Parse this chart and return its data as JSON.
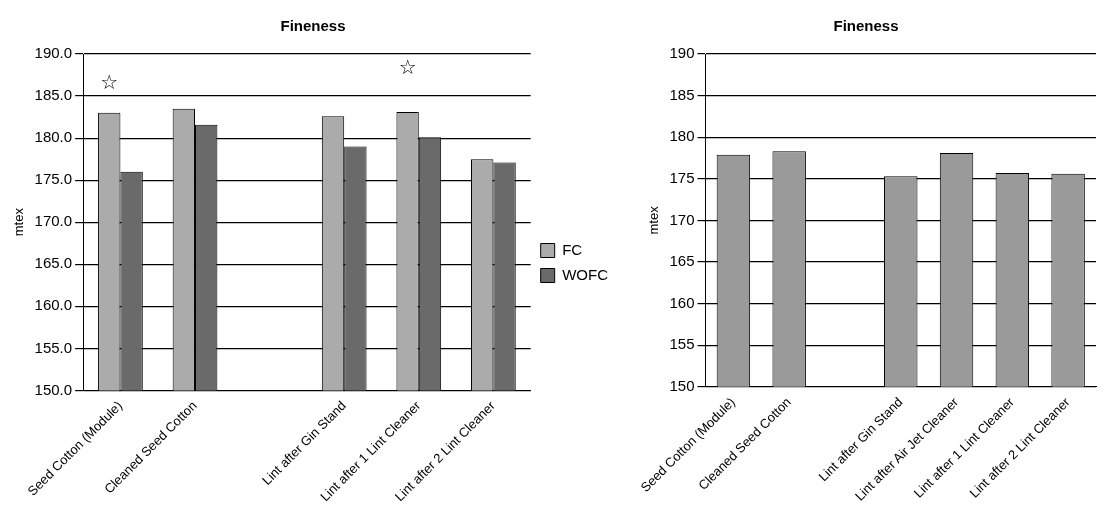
{
  "chart_data": [
    {
      "type": "bar",
      "title": "Fineness",
      "ylabel": "mtex",
      "categories": [
        "Seed Cotton (Module)",
        "Cleaned Seed Cotton",
        null,
        "Lint after Gin Stand",
        "Lint after 1 Lint Cleaner",
        "Lint after 2 Lint Cleaner"
      ],
      "series": [
        {
          "name": "FC",
          "color": "#ababab",
          "values": [
            183.0,
            183.5,
            null,
            182.6,
            183.1,
            177.5
          ]
        },
        {
          "name": "WOFC",
          "color": "#6a6a6a",
          "values": [
            176.0,
            181.6,
            null,
            179.0,
            180.1,
            177.1
          ]
        }
      ],
      "ylim": [
        150,
        190
      ],
      "yticks": [
        {
          "value": 150,
          "label": "150.0"
        },
        {
          "value": 155,
          "label": "155.0"
        },
        {
          "value": 160,
          "label": "160.0"
        },
        {
          "value": 165,
          "label": "165.0"
        },
        {
          "value": 170,
          "label": "170.0"
        },
        {
          "value": 175,
          "label": "175.0"
        },
        {
          "value": 180,
          "label": "180.0"
        },
        {
          "value": 185,
          "label": "185.0"
        },
        {
          "value": 190,
          "label": "190.0"
        }
      ],
      "grid": "y",
      "legend": "right",
      "annotations": [
        "☆",
        "☆"
      ]
    },
    {
      "type": "bar",
      "title": "Fineness",
      "ylabel": "mtex",
      "categories": [
        "Seed Cotton (Module)",
        "Cleaned Seed Cotton",
        null,
        "Lint after Gin Stand",
        "Lint after Air Jet Cleaner",
        "Lint after 1 Lint Cleaner",
        "Lint after 2 Lint Cleaner"
      ],
      "series": [
        {
          "color": "#9a9a9a",
          "values": [
            177.9,
            178.3,
            null,
            175.3,
            178.1,
            175.7,
            175.6
          ]
        }
      ],
      "ylim": [
        150,
        190
      ],
      "yticks": [
        150,
        155,
        160,
        165,
        170,
        175,
        180,
        185,
        190
      ],
      "grid": "y"
    }
  ]
}
